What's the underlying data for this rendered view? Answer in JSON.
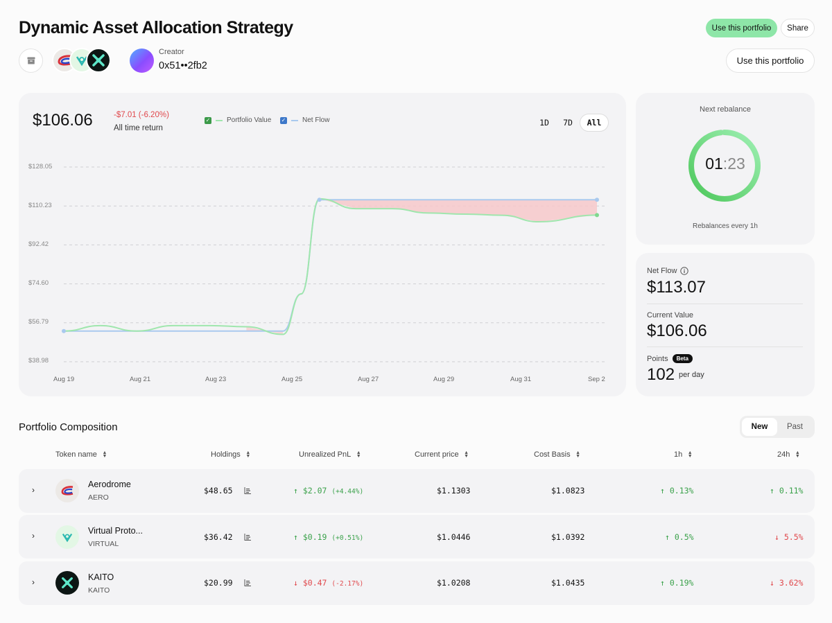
{
  "header": {
    "title": "Dynamic Asset Allocation Strategy",
    "use_portfolio_label": "Use this portfolio",
    "share_label": "Share",
    "use_portfolio_label_2": "Use this portfolio",
    "creator_label": "Creator",
    "creator_address": "0x51••2fb2",
    "token_icons": [
      "aerodrome-icon",
      "virtual-icon",
      "kaito-icon"
    ]
  },
  "chart_panel": {
    "portfolio_value": "$106.06",
    "return_text": "-$7.01 (-6.20%)",
    "return_label": "All time return",
    "ranges": [
      "1D",
      "7D",
      "All"
    ],
    "active_range": "All",
    "colors": {
      "portfolio_value": "#9fe6ad",
      "net_flow": "#a9c9ee",
      "loss_fill": "#f6c8ca",
      "negative": "#e0484c",
      "positive": "#3aa14a"
    }
  },
  "chart_data": {
    "type": "line",
    "x": [
      "Aug 19",
      "Aug 20",
      "Aug 21",
      "Aug 22",
      "Aug 23",
      "Aug 24",
      "Aug 25",
      "Aug 25.5",
      "Aug 26",
      "Aug 27",
      "Aug 28",
      "Aug 29",
      "Aug 30",
      "Aug 31",
      "Sep 1",
      "Sep 2"
    ],
    "x_numeric": [
      19,
      20,
      21,
      22,
      23,
      24,
      25,
      25.5,
      26,
      27,
      28,
      29,
      30,
      31,
      32,
      33.6
    ],
    "series": [
      {
        "name": "Portfolio Value",
        "values": [
          53.0,
          55.5,
          53.0,
          55.5,
          55.5,
          55.0,
          51.5,
          70.0,
          113.5,
          109.0,
          109.0,
          107.0,
          106.5,
          106.0,
          103.0,
          106.06
        ]
      },
      {
        "name": "Net Flow",
        "values": [
          53.0,
          53.0,
          53.0,
          53.0,
          53.0,
          53.0,
          53.0,
          70.0,
          113.07,
          113.07,
          113.07,
          113.07,
          113.07,
          113.07,
          113.07,
          113.07
        ]
      }
    ],
    "x_ticks": [
      "Aug 19",
      "Aug 21",
      "Aug 23",
      "Aug 25",
      "Aug 27",
      "Aug 29",
      "Aug 31",
      "Sep 2"
    ],
    "y_ticks": [
      "$128.05",
      "$110.23",
      "$92.42",
      "$74.60",
      "$56.79",
      "$38.98"
    ],
    "ylim": [
      38.98,
      128.05
    ],
    "legend": [
      "Portfolio Value",
      "Net Flow"
    ],
    "legend_position": "top-center",
    "grid": true
  },
  "rebalance": {
    "title": "Next rebalance",
    "minutes": "01",
    "colon": ":",
    "seconds": "23",
    "note": "Rebalances every 1h",
    "progress": 0.98
  },
  "stats": {
    "net_flow_label": "Net Flow",
    "net_flow_value": "$113.07",
    "current_value_label": "Current Value",
    "current_value": "$106.06",
    "points_label": "Points",
    "points_badge": "Beta",
    "points_value": "102",
    "points_unit": "per day"
  },
  "composition": {
    "title": "Portfolio Composition",
    "tab_new": "New",
    "tab_past": "Past",
    "columns": [
      "Token name",
      "Holdings",
      "Unrealized PnL",
      "Current price",
      "Cost Basis",
      "1h",
      "24h"
    ],
    "rows": [
      {
        "name": "Aerodrome",
        "symbol": "AERO",
        "icon": "aerodrome-icon",
        "holdings": "$48.65",
        "pnl": "$2.07",
        "pnl_pct": "(+4.44%)",
        "pnl_dir": "up",
        "price": "$1.1303",
        "cost_basis": "$1.0823",
        "h1": "0.13%",
        "h1_dir": "up",
        "h24": "0.11%",
        "h24_dir": "up"
      },
      {
        "name": "Virtual Proto...",
        "symbol": "VIRTUAL",
        "icon": "virtual-icon",
        "holdings": "$36.42",
        "pnl": "$0.19",
        "pnl_pct": "(+0.51%)",
        "pnl_dir": "up",
        "price": "$1.0446",
        "cost_basis": "$1.0392",
        "h1": "0.5%",
        "h1_dir": "up",
        "h24": "5.5%",
        "h24_dir": "down"
      },
      {
        "name": "KAITO",
        "symbol": "KAITO",
        "icon": "kaito-icon",
        "holdings": "$20.99",
        "pnl": "$0.47",
        "pnl_pct": "(-2.17%)",
        "pnl_dir": "down",
        "price": "$1.0208",
        "cost_basis": "$1.0435",
        "h1": "0.19%",
        "h1_dir": "up",
        "h24": "3.62%",
        "h24_dir": "down"
      }
    ]
  }
}
